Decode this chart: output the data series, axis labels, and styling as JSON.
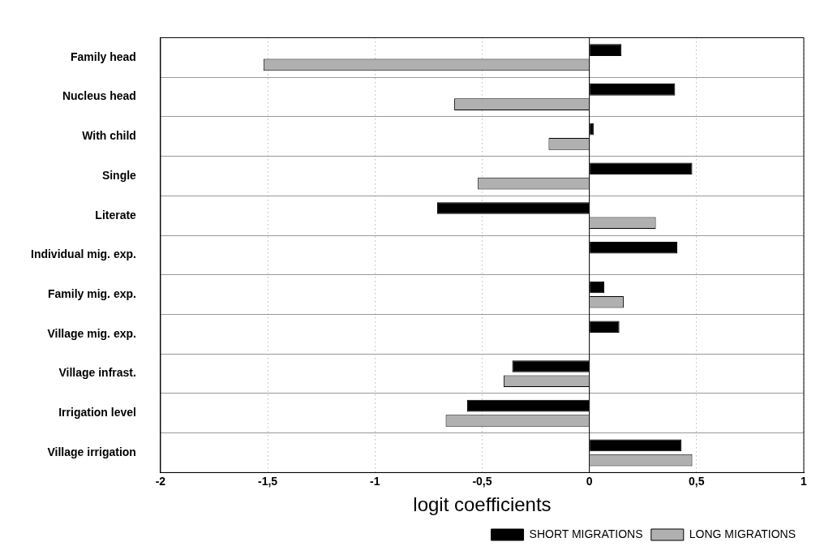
{
  "chart_data": {
    "type": "bar",
    "orientation": "horizontal",
    "xlabel": "logit coefficients",
    "categories": [
      "Family head",
      "Nucleus head",
      "With child",
      "Single",
      "Literate",
      "Individual mig. exp.",
      "Family mig. exp.",
      "Village mig. exp.",
      "Village infrast.",
      "Irrigation level",
      "Village irrigation"
    ],
    "series": [
      {
        "name": "SHORT MIGRATIONS",
        "color": "#000000",
        "values": [
          0.15,
          0.4,
          0.02,
          0.48,
          -0.71,
          0.41,
          0.07,
          0.14,
          -0.36,
          -0.57,
          0.43
        ]
      },
      {
        "name": "LONG MIGRATIONS",
        "color": "#b0b0b0",
        "values": [
          -1.52,
          -0.63,
          -0.19,
          -0.52,
          0.31,
          null,
          0.16,
          null,
          -0.4,
          -0.67,
          0.48
        ]
      }
    ],
    "xlim": [
      -2,
      1
    ],
    "xticks": [
      {
        "value": -2,
        "label": "-2"
      },
      {
        "value": -1.5,
        "label": "-1,5"
      },
      {
        "value": -1,
        "label": "-1"
      },
      {
        "value": -0.5,
        "label": "-0,5"
      },
      0,
      {
        "value": 0.5,
        "label": "0,5"
      },
      1
    ],
    "grid": true,
    "legend": "bottom right"
  }
}
